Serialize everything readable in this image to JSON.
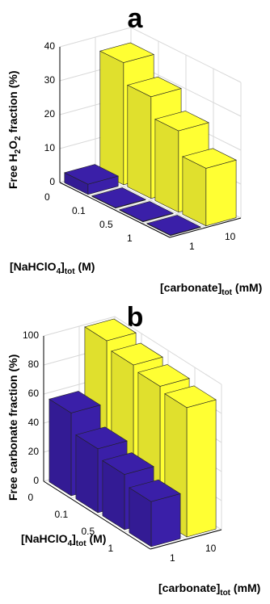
{
  "chart_data": [
    {
      "panel_label": "a",
      "type": "bar",
      "subtype": "3d-bar",
      "ylabel": "Free H₂O₂ fraction (%)",
      "ylabel_parts": [
        "Free H",
        "2",
        "O",
        "2",
        " fraction (%)"
      ],
      "xlabel_parts": [
        "[NaHClO",
        "4",
        "]",
        "tot",
        " (M)"
      ],
      "zlabel_parts": [
        "[carbonate]",
        "tot",
        " (mM)"
      ],
      "x_categories": [
        "0",
        "0.1",
        "0.5",
        "1"
      ],
      "z_categories": [
        "1",
        "10"
      ],
      "yticks": [
        "0",
        "10",
        "20",
        "30",
        "40"
      ],
      "ylim": [
        0,
        40
      ],
      "series": [
        {
          "name": "1",
          "color": "#3a1fa8",
          "values": [
            3,
            0,
            0,
            0
          ]
        },
        {
          "name": "10",
          "color": "#ffff33",
          "values": [
            36,
            30,
            24,
            17
          ]
        }
      ]
    },
    {
      "panel_label": "b",
      "type": "bar",
      "subtype": "3d-bar",
      "ylabel": "Free carbonate fraction (%)",
      "ylabel_parts": [
        "Free carbonate fraction (%)"
      ],
      "xlabel_parts": [
        "[NaHClO",
        "4",
        "]",
        "tot",
        " (M)"
      ],
      "zlabel_parts": [
        "[carbonate]",
        "tot",
        " (mM)"
      ],
      "x_categories": [
        "0",
        "0.1",
        "0.5",
        "1"
      ],
      "z_categories": [
        "1",
        "10"
      ],
      "yticks": [
        "0",
        "20",
        "40",
        "60",
        "80",
        "100"
      ],
      "ylim": [
        0,
        100
      ],
      "series": [
        {
          "name": "1",
          "color": "#3a1fa8",
          "values": [
            57,
            44,
            38,
            31
          ]
        },
        {
          "name": "10",
          "color": "#ffff33",
          "values": [
            100,
            95,
            92,
            89
          ]
        }
      ]
    }
  ]
}
